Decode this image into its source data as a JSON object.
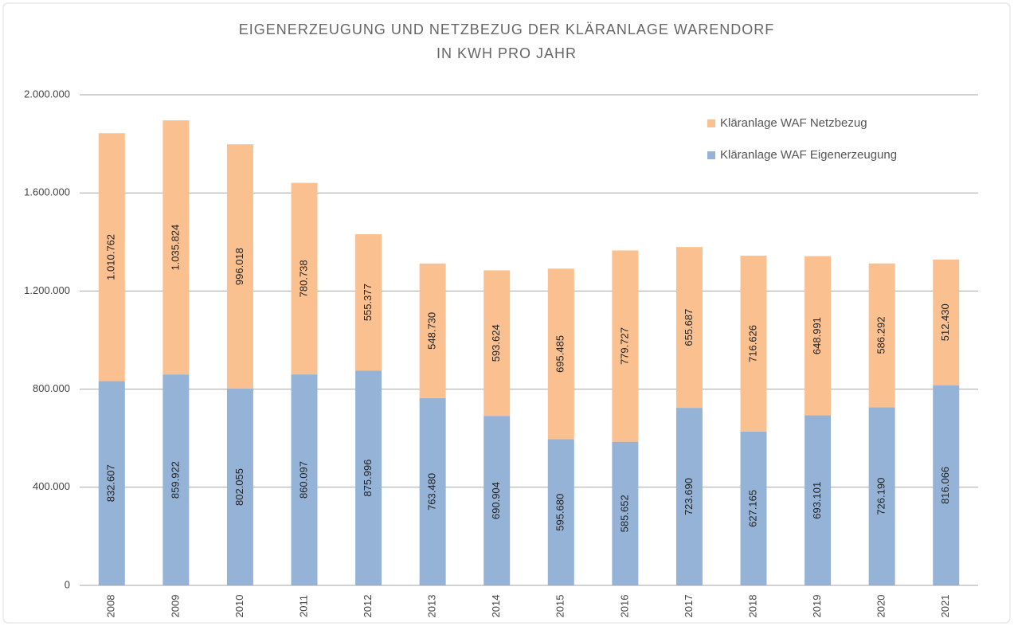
{
  "chart_data": {
    "type": "stacked-bar",
    "title": [
      "EIGENERZEUGUNG UND NETZBEZUG DER KLÄRANLAGE WARENDORF",
      "IN KWH PRO JAHR"
    ],
    "categories": [
      "2008",
      "2009",
      "2010",
      "2011",
      "2012",
      "2013",
      "2014",
      "2015",
      "2016",
      "2017",
      "2018",
      "2019",
      "2020",
      "2021"
    ],
    "series": [
      {
        "name": "Kläranlage WAF Eigenerzeugung",
        "color": "#95b3d7",
        "values": [
          832607,
          859922,
          802055,
          860097,
          875996,
          763480,
          690904,
          595680,
          585652,
          723690,
          627165,
          693101,
          726190,
          816066
        ],
        "value_labels": [
          "832.607",
          "859.922",
          "802.055",
          "860.097",
          "875.996",
          "763.480",
          "690.904",
          "595.680",
          "585.652",
          "723.690",
          "627.165",
          "693.101",
          "726.190",
          "816.066"
        ]
      },
      {
        "name": "Kläranlage WAF Netzbezug",
        "color": "#fac090",
        "values": [
          1010762,
          1035824,
          996018,
          780738,
          555377,
          548730,
          593624,
          695485,
          779727,
          655687,
          716626,
          648991,
          586292,
          512430
        ],
        "value_labels": [
          "1.010.762",
          "1.035.824",
          "996.018",
          "780.738",
          "555.377",
          "548.730",
          "593.624",
          "695.485",
          "779.727",
          "655.687",
          "716.626",
          "648.991",
          "586.292",
          "512.430"
        ]
      }
    ],
    "ylim": [
      0,
      2000000
    ],
    "yticks": [
      0,
      {
        "value": 400000,
        "label": "400.000"
      },
      {
        "value": 800000,
        "label": "800.000"
      },
      {
        "value": 1200000,
        "label": "1.200.000"
      },
      {
        "value": 1600000,
        "label": "1.600.000"
      },
      {
        "value": 2000000,
        "label": "2.000.000"
      }
    ],
    "grid": true,
    "legend": "top-right"
  }
}
